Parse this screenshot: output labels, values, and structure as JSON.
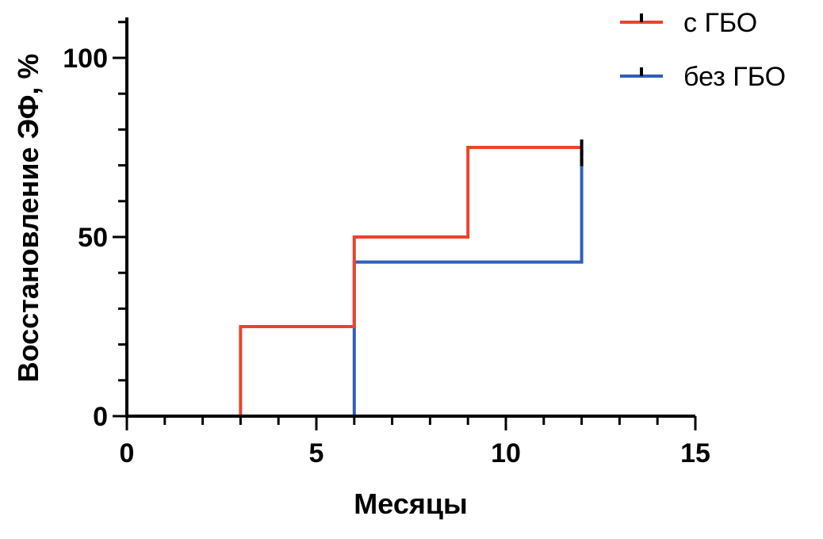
{
  "chart_data": {
    "type": "line",
    "step": true,
    "xlabel": "Месяцы",
    "ylabel": "Восстановление ЭФ, %",
    "xlim": [
      0,
      15
    ],
    "ylim": [
      0,
      110
    ],
    "x_ticks": [
      0,
      5,
      10,
      15
    ],
    "x_tick_labels": [
      "0",
      "5",
      "10",
      "15"
    ],
    "x_minor_step": 1,
    "y_ticks": [
      0,
      50,
      100
    ],
    "y_tick_labels": [
      "0",
      "50",
      "100"
    ],
    "y_minor_step": 10,
    "grid": false,
    "legend_position": "top-right",
    "series": [
      {
        "name": "с ГБО",
        "color": "#e8452c",
        "x": [
          0,
          3,
          6,
          9,
          12
        ],
        "y": [
          0,
          25,
          50,
          75,
          75
        ],
        "censored": [
          {
            "x": 12,
            "y": 75
          }
        ]
      },
      {
        "name": "без ГБО",
        "color": "#2f5fb8",
        "x": [
          0,
          6,
          12
        ],
        "y": [
          0,
          43,
          72
        ],
        "censored": [
          {
            "x": 12,
            "y": 72
          }
        ]
      }
    ]
  }
}
